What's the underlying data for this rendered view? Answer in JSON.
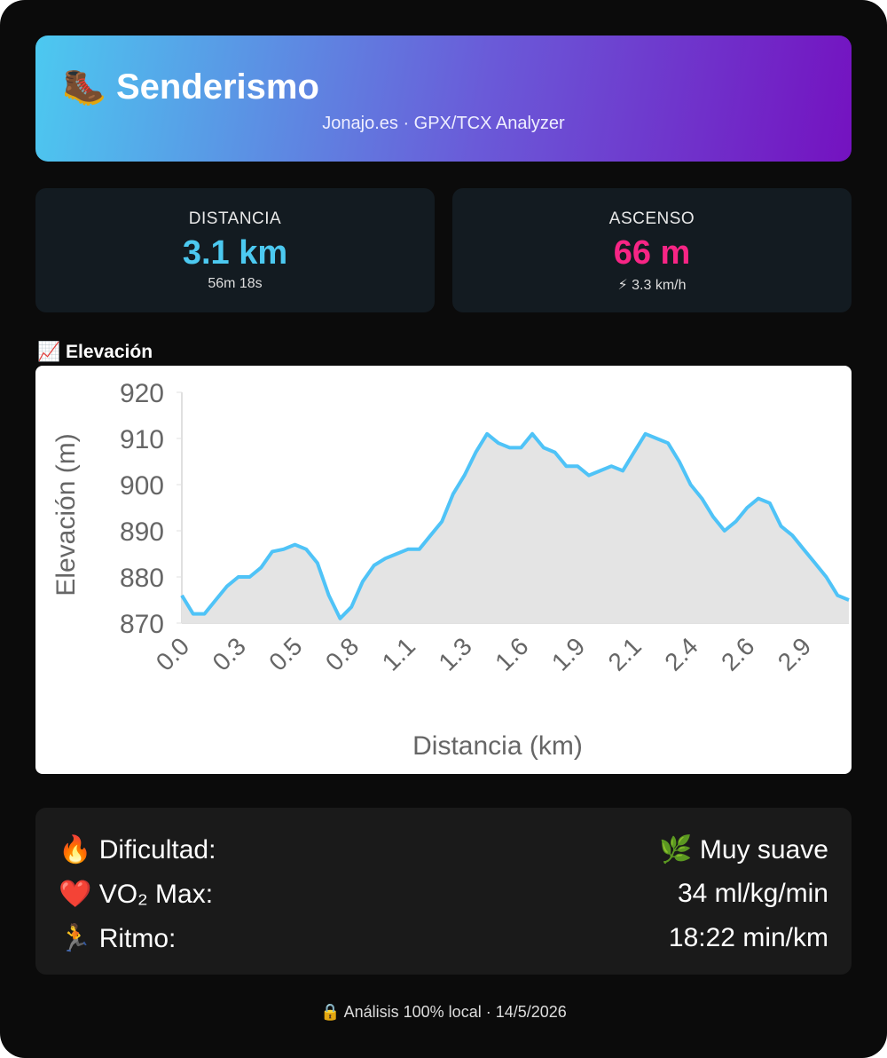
{
  "header": {
    "icon": "🥾",
    "title": "Senderismo",
    "subtitle": "Jonajo.es · GPX/TCX Analyzer"
  },
  "stats": [
    {
      "label": "DISTANCIA",
      "value": "3.1 km",
      "sub": "56m 18s"
    },
    {
      "label": "ASCENSO",
      "value": "66 m",
      "sub": "⚡ 3.3 km/h"
    }
  ],
  "section_title": "📈 Elevación",
  "chart_data": {
    "type": "area",
    "x_label": "Distancia (km)",
    "y_label": "Elevación (m)",
    "categories": [
      "0.0",
      null,
      null,
      null,
      null,
      "0.3",
      null,
      null,
      null,
      null,
      "0.5",
      null,
      null,
      null,
      null,
      "0.8",
      null,
      null,
      null,
      null,
      "1.1",
      null,
      null,
      null,
      null,
      "1.3",
      null,
      null,
      null,
      null,
      "1.6",
      null,
      null,
      null,
      null,
      "1.9",
      null,
      null,
      null,
      null,
      "2.1",
      null,
      null,
      null,
      null,
      "2.4",
      null,
      null,
      null,
      null,
      "2.6",
      null,
      null,
      null,
      null,
      "2.9",
      null,
      null,
      null,
      null
    ],
    "values": [
      876,
      872,
      872,
      875,
      878,
      880,
      880,
      882,
      885.5,
      886,
      887,
      886,
      883,
      876,
      871,
      873.5,
      879,
      882.5,
      884,
      885,
      886,
      886,
      889,
      892,
      898,
      902,
      907,
      911,
      909,
      908,
      908,
      911,
      908,
      907,
      904,
      904,
      902,
      903,
      904,
      903,
      907,
      911,
      910,
      909,
      905,
      900,
      897,
      893,
      890,
      892,
      895,
      897,
      896,
      891,
      889,
      886,
      883,
      880,
      876,
      875
    ],
    "color": "#4fc3f7",
    "fill_color": "#e4e4e4",
    "ylim": [
      870,
      920
    ],
    "yticks": [
      870,
      880,
      890,
      900,
      910,
      920
    ]
  },
  "details": [
    {
      "icon": "🔥",
      "label": "Dificultad:",
      "value": "🌿 Muy suave"
    },
    {
      "icon": "❤️",
      "label": "VO₂ Max:",
      "value": "34 ml/kg/min"
    },
    {
      "icon": "🏃",
      "label": "Ritmo:",
      "value": "18:22 min/km"
    }
  ],
  "footer": "🔒 Análisis 100% local · 14/5/2026"
}
